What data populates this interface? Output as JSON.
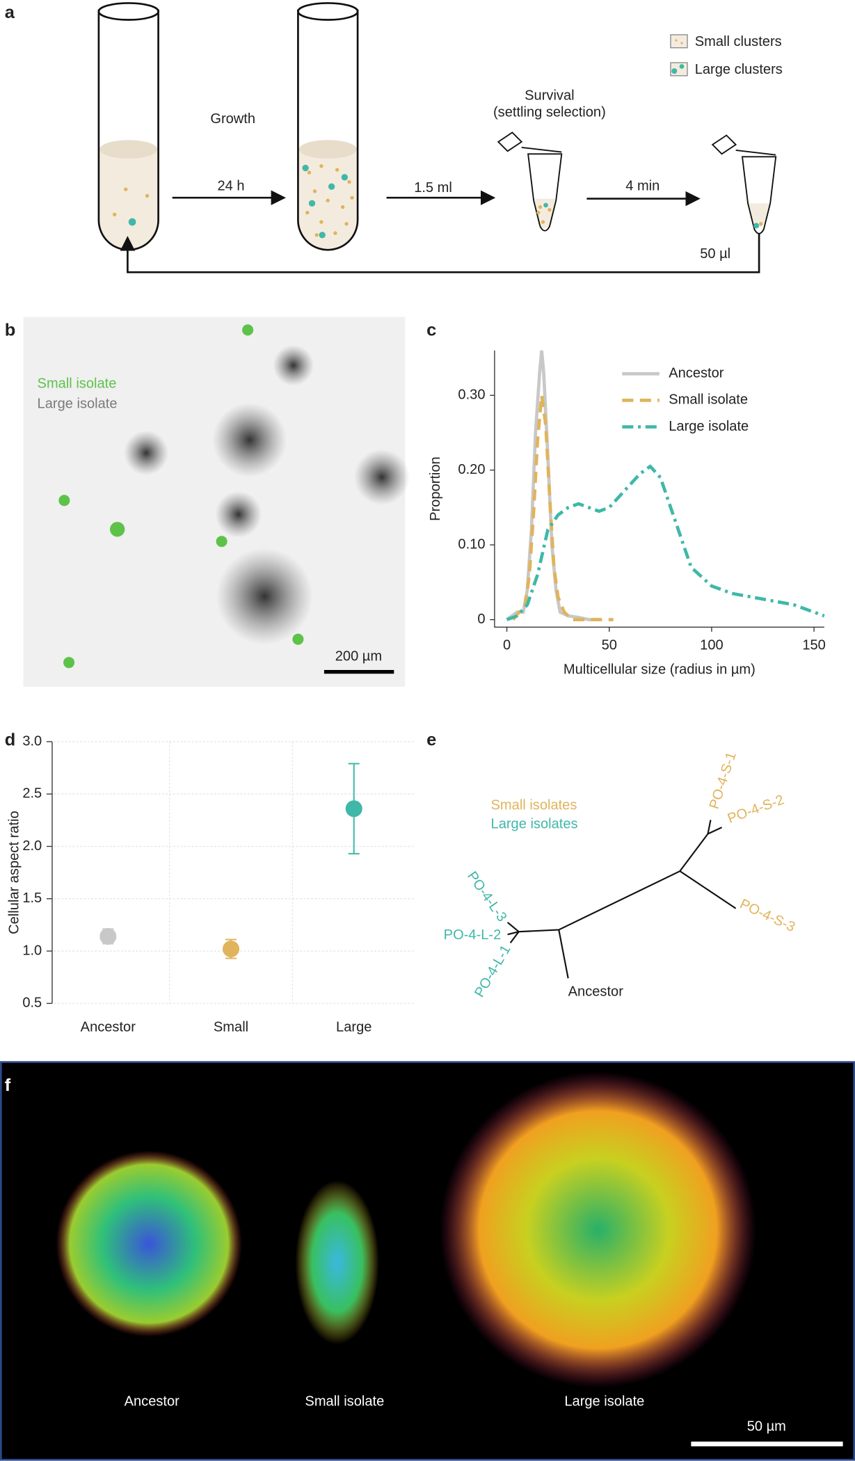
{
  "panel_labels": [
    "a",
    "b",
    "c",
    "d",
    "e",
    "f"
  ],
  "panel_a": {
    "legend": [
      "Small clusters",
      "Large clusters"
    ],
    "growth": "Growth",
    "step_1": "24 h",
    "step_2": "1.5 ml",
    "survival": [
      "Survival",
      "(settling selection)"
    ],
    "step_3": "4 min",
    "return": "50 µl"
  },
  "panel_b": {
    "legend": [
      "Small isolate",
      "Large isolate"
    ],
    "legend_colors": [
      "#5ec24a",
      "#7a7a7a"
    ],
    "scale_bar": "200 µm"
  },
  "chart_data": [
    {
      "type": "line",
      "x_label": "Multicellular size (radius in µm)",
      "y_label": "Proportion",
      "xlim": [
        -6,
        155
      ],
      "xticks": [
        0,
        50,
        100,
        150
      ],
      "ylim": [
        -0.01,
        0.36
      ],
      "yticks": [
        0,
        {
          "value": 0.1,
          "label": "0.10"
        },
        {
          "value": 0.2,
          "label": "0.20"
        },
        {
          "value": 0.3,
          "label": "0.30"
        }
      ],
      "series": [
        {
          "name": "Ancestor",
          "color": "#c8c8c8",
          "dash": "solid",
          "x": [
            0,
            5,
            8,
            10,
            12,
            14,
            16,
            17,
            18,
            20,
            22,
            24,
            26,
            30,
            35,
            40,
            45
          ],
          "values": [
            0,
            0.01,
            0.01,
            0.04,
            0.12,
            0.25,
            0.33,
            0.36,
            0.33,
            0.22,
            0.1,
            0.04,
            0.01,
            0.005,
            0.003,
            0,
            0
          ]
        },
        {
          "name": "Small isolate",
          "color": "#e0b45c",
          "dash": "dashed",
          "x": [
            3,
            6,
            9,
            11,
            13,
            15,
            17,
            19,
            21,
            23,
            25,
            28,
            32,
            38,
            45,
            52
          ],
          "values": [
            0,
            0.01,
            0.02,
            0.06,
            0.14,
            0.24,
            0.3,
            0.26,
            0.16,
            0.07,
            0.03,
            0.01,
            0,
            0,
            0,
            0
          ]
        },
        {
          "name": "Large isolate",
          "color": "#3fb8a8",
          "dash": "dashdot",
          "x": [
            0,
            5,
            10,
            15,
            20,
            25,
            30,
            35,
            40,
            45,
            50,
            55,
            60,
            65,
            70,
            75,
            80,
            85,
            90,
            100,
            110,
            120,
            130,
            140,
            150,
            155
          ],
          "values": [
            0,
            0.005,
            0.02,
            0.06,
            0.12,
            0.14,
            0.15,
            0.155,
            0.15,
            0.145,
            0.15,
            0.165,
            0.18,
            0.195,
            0.205,
            0.19,
            0.15,
            0.11,
            0.07,
            0.045,
            0.035,
            0.03,
            0.025,
            0.02,
            0.01,
            0.005
          ]
        }
      ]
    },
    {
      "type": "scatter",
      "y_label": "Cellular aspect ratio",
      "categories": [
        "Ancestor",
        "Small",
        "Large"
      ],
      "values": [
        1.14,
        1.02,
        2.36
      ],
      "errors": [
        0.07,
        0.09,
        0.43
      ],
      "colors": [
        "#c8c8c8",
        "#e0b45c",
        "#3fb8a8"
      ],
      "ylim": [
        0.5,
        3.0
      ],
      "yticks": [
        0.5,
        {
          "value": 1,
          "label": "1.0"
        },
        1.5,
        {
          "value": 2,
          "label": "2.0"
        },
        2.5,
        {
          "value": 3,
          "label": "3.0"
        }
      ],
      "grid": true
    }
  ],
  "panel_e": {
    "legend": [
      "Small isolates",
      "Large isolates"
    ],
    "leaves": [
      "PO-4-S-1",
      "PO-4-S-2",
      "PO-4-S-3",
      "PO-4-L-3",
      "PO-4-L-2",
      "PO-4-L-1",
      "Ancestor"
    ]
  },
  "panel_f": {
    "labels": [
      "Ancestor",
      "Small isolate",
      "Large isolate"
    ],
    "scale_bar": "50 µm"
  }
}
